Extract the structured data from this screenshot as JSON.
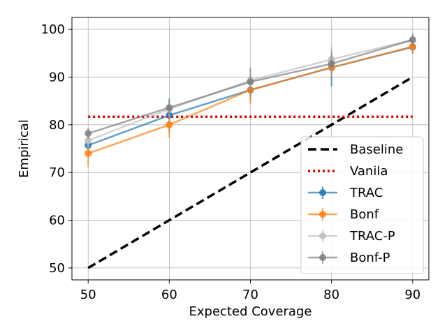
{
  "chart_data": {
    "type": "line",
    "xlabel": "Expected Coverage",
    "ylabel": "Empirical",
    "x": [
      50,
      60,
      70,
      80,
      90
    ],
    "xticks": [
      50,
      60,
      70,
      80,
      90
    ],
    "yticks": [
      50,
      60,
      70,
      80,
      90,
      100
    ],
    "xlim": [
      48,
      92
    ],
    "ylim": [
      47.5,
      102.5
    ],
    "grid": true,
    "legend_position": "lower-right",
    "series": [
      {
        "name": "Baseline",
        "style": "dashed",
        "color": "#000000",
        "values": [
          50,
          60,
          70,
          80,
          90
        ]
      },
      {
        "name": "Vanila",
        "style": "dotted",
        "color": "#dd0000",
        "values": [
          81.7,
          81.7,
          81.7,
          81.7,
          81.7
        ]
      },
      {
        "name": "TRAC",
        "style": "solid-marker",
        "color": "#1f77b4",
        "values": [
          75.7,
          82.0,
          87.3,
          92.0,
          96.3
        ],
        "errors": [
          1.2,
          3.5,
          2.5,
          4.0,
          1.2
        ]
      },
      {
        "name": "Bonf",
        "style": "solid-marker",
        "color": "#ff7f0e",
        "values": [
          74.0,
          80.0,
          87.3,
          92.0,
          96.4
        ],
        "errors": [
          2.8,
          2.8,
          3.0,
          1.8,
          1.5
        ]
      },
      {
        "name": "TRAC-P",
        "style": "solid-marker",
        "color": "#bfbfbf",
        "values": [
          76.7,
          83.3,
          89.3,
          93.7,
          97.8
        ],
        "errors": [
          1.5,
          1.5,
          2.5,
          3.0,
          1.2
        ]
      },
      {
        "name": "Bonf-P",
        "style": "solid-marker",
        "color": "#7f7f7f",
        "values": [
          78.2,
          83.6,
          89.0,
          92.8,
          97.8
        ],
        "errors": [
          1.2,
          1.5,
          3.0,
          2.2,
          1.3
        ]
      }
    ]
  }
}
